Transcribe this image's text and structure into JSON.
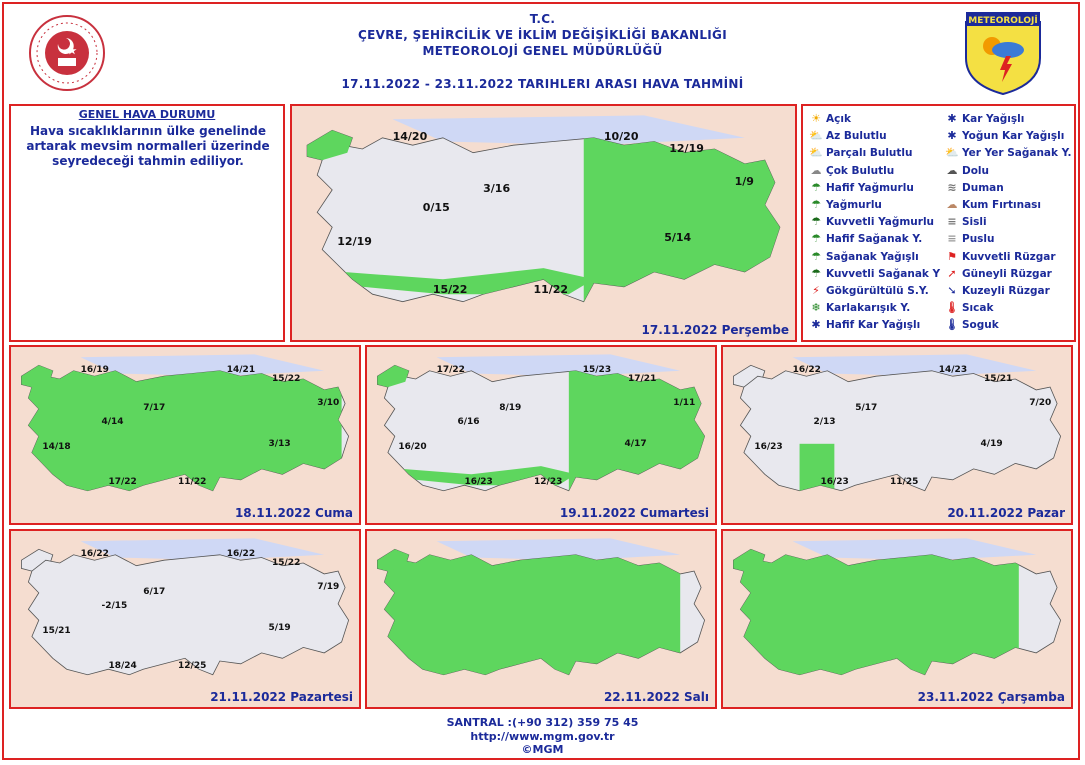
{
  "header": {
    "line1": "T.C.",
    "line2": "ÇEVRE, ŞEHİRCİLİK VE İKLİM DEĞİŞİKLİĞİ BAKANLIĞI",
    "line3": "METEOROLOJİ GENEL MÜDÜRLÜĞÜ",
    "date_range": "17.11.2022 - 23.11.2022 TARIHLERI ARASI HAVA TAHMİNİ"
  },
  "logo_right_text": "METEOROLOJİ",
  "genel": {
    "title": "GENEL HAVA DURUMU",
    "text": "Hava sıcaklıklarının ülke genelinde artarak mevsim normalleri üzerinde seyredeceği tahmin ediliyor."
  },
  "legend": [
    {
      "icon": "sun-icon",
      "glyph": "☀",
      "color": "#f2a900",
      "label": "Açık"
    },
    {
      "icon": "few-clouds-icon",
      "glyph": "⛅",
      "color": "#f2a900",
      "label": "Az Bulutlu"
    },
    {
      "icon": "partly-cloudy-icon",
      "glyph": "⛅",
      "color": "#999",
      "label": "Parçalı Bulutlu"
    },
    {
      "icon": "cloudy-icon",
      "glyph": "☁",
      "color": "#888",
      "label": "Çok Bulutlu"
    },
    {
      "icon": "light-rain-icon",
      "glyph": "☂",
      "color": "#2a8a2a",
      "label": "Hafif Yağmurlu"
    },
    {
      "icon": "rain-icon",
      "glyph": "☂",
      "color": "#2a8a2a",
      "label": "Yağmurlu"
    },
    {
      "icon": "heavy-rain-icon",
      "glyph": "☂",
      "color": "#1a6a1a",
      "label": "Kuvvetli Yağmurlu"
    },
    {
      "icon": "light-shower-icon",
      "glyph": "☂",
      "color": "#2a8a2a",
      "label": "Hafif Sağanak Y."
    },
    {
      "icon": "shower-icon",
      "glyph": "☂",
      "color": "#2a8a2a",
      "label": "Sağanak Yağışlı"
    },
    {
      "icon": "heavy-shower-icon",
      "glyph": "☂",
      "color": "#1a6a1a",
      "label": "Kuvvetli Sağanak Y"
    },
    {
      "icon": "thunderstorm-icon",
      "glyph": "⚡",
      "color": "#d22",
      "label": "Gökgürültülü S.Y."
    },
    {
      "icon": "sleet-icon",
      "glyph": "❄",
      "color": "#2a8a2a",
      "label": "Karlakarışık Y."
    },
    {
      "icon": "light-snow-icon",
      "glyph": "✱",
      "color": "#1b2a9a",
      "label": "Hafif Kar Yağışlı"
    },
    {
      "icon": "snow-icon",
      "glyph": "✱",
      "color": "#1b2a9a",
      "label": "Kar Yağışlı"
    },
    {
      "icon": "heavy-snow-icon",
      "glyph": "✱",
      "color": "#1b2a9a",
      "label": "Yoğun Kar Yağışlı"
    },
    {
      "icon": "scattered-shower-icon",
      "glyph": "⛅",
      "color": "#d22",
      "label": "Yer Yer Sağanak Y."
    },
    {
      "icon": "hail-icon",
      "glyph": "☁",
      "color": "#555",
      "label": "Dolu"
    },
    {
      "icon": "smoke-icon",
      "glyph": "≋",
      "color": "#777",
      "label": "Duman"
    },
    {
      "icon": "sandstorm-icon",
      "glyph": "☁",
      "color": "#b86",
      "label": "Kum Fırtınası"
    },
    {
      "icon": "fog-icon",
      "glyph": "≡",
      "color": "#777",
      "label": "Sisli"
    },
    {
      "icon": "mist-icon",
      "glyph": "≡",
      "color": "#999",
      "label": "Puslu"
    },
    {
      "icon": "strong-wind-icon",
      "glyph": "⚑",
      "color": "#d22",
      "label": "Kuvvetli Rüzgar"
    },
    {
      "icon": "south-wind-icon",
      "glyph": "➚",
      "color": "#d22",
      "label": "Güneyli Rüzgar"
    },
    {
      "icon": "north-wind-icon",
      "glyph": "➘",
      "color": "#1b2a9a",
      "label": "Kuzeyli Rüzgar"
    },
    {
      "icon": "hot-icon",
      "glyph": "🌡",
      "color": "#d22",
      "label": "Sıcak"
    },
    {
      "icon": "cold-icon",
      "glyph": "🌡",
      "color": "#1b2a9a",
      "label": "Soguk"
    }
  ],
  "maps": [
    {
      "label": "17.11.2022 Perşembe",
      "green": 0.55,
      "temps": [
        "14/20",
        "10/20",
        "12/19",
        "1/9",
        "3/16",
        "0/15",
        "12/19",
        "5/14",
        "15/22",
        "11/22"
      ]
    },
    {
      "label": "18.11.2022 Cuma",
      "green": 0.7,
      "temps": [
        "16/19",
        "14/21",
        "15/22",
        "3/10",
        "7/17",
        "4/14",
        "14/18",
        "3/13",
        "17/22",
        "11/22"
      ]
    },
    {
      "label": "19.11.2022 Cumartesi",
      "green": 0.45,
      "temps": [
        "17/22",
        "15/23",
        "17/21",
        "1/11",
        "8/19",
        "6/16",
        "16/20",
        "4/17",
        "16/23",
        "12/23"
      ]
    },
    {
      "label": "20.11.2022 Pazar",
      "green": 0.1,
      "temps": [
        "16/22",
        "14/23",
        "15/21",
        "7/20",
        "5/17",
        "2/13",
        "16/23",
        "4/19",
        "16/23",
        "11/25"
      ]
    },
    {
      "label": "21.11.2022 Pazartesi",
      "green": 0.0,
      "temps": [
        "16/22",
        "16/22",
        "15/22",
        "7/19",
        "6/17",
        "-2/15",
        "15/21",
        "5/19",
        "18/24",
        "12/25"
      ]
    },
    {
      "label": "22.11.2022 Salı",
      "green": 0.9,
      "temps": []
    },
    {
      "label": "23.11.2022 Çarşamba",
      "green": 0.85,
      "temps": []
    }
  ],
  "footer": {
    "santral": "SANTRAL :(+90 312) 359 75 45",
    "url": "http://www.mgm.gov.tr",
    "copy": "©MGM"
  },
  "colors": {
    "accent": "#1b2a9a",
    "border": "#dd2222",
    "land": "#e8e8ee",
    "green": "#5ed65e",
    "sea": "#cfd8f5",
    "bg": "#f5ddd0"
  }
}
